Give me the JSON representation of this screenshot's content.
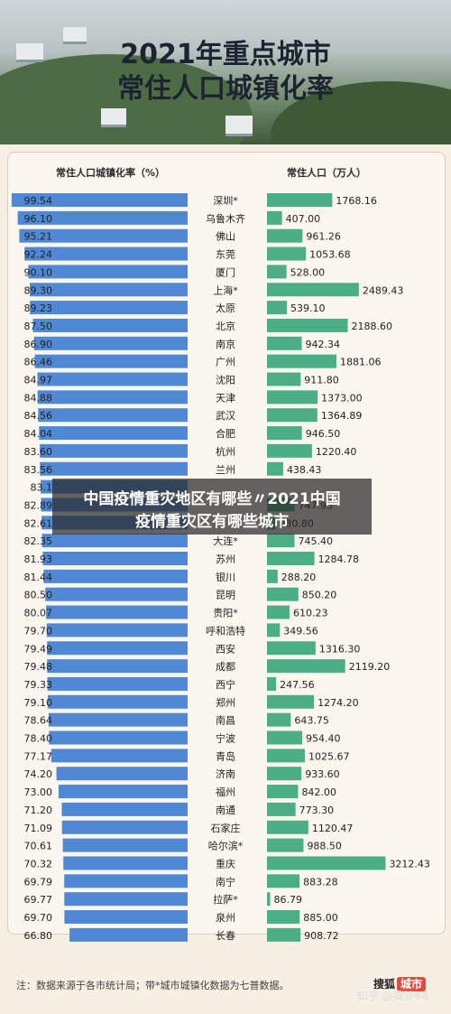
{
  "title_line1": "2021年重点城市",
  "title_line2": "常住人口城镇化率",
  "footer_note": "注：数据来源于各市统计局；带*城市城镇化数据为七普数据。",
  "brand": {
    "name": "搜狐",
    "tag": "城市"
  },
  "credit": "知乎 @霓沙66",
  "overlay": {
    "line1": "中国疫情重灾地区有哪些〃2021中国",
    "line2": "疫情重灾区有哪些城市"
  },
  "colors": {
    "left_bar": "#4f89d6",
    "right_bar": "#4cae86",
    "background": "#f6efe4"
  },
  "chart_data": {
    "type": "bar",
    "left_header": "常住人口城镇化率（%）",
    "right_header": "常住人口（万人）",
    "categories": [
      "深圳*",
      "乌鲁木齐",
      "佛山",
      "东莞",
      "厦门",
      "上海*",
      "太原",
      "北京",
      "南京",
      "广州",
      "沈阳",
      "天津",
      "武汉",
      "合肥",
      "杭州",
      "兰州",
      "",
      "",
      "",
      "大连*",
      "苏州",
      "银川",
      "昆明",
      "贵阳*",
      "呼和浩特",
      "西安",
      "成都",
      "西宁",
      "郑州",
      "南昌",
      "宁波",
      "青岛",
      "济南",
      "福州",
      "南通",
      "石家庄",
      "哈尔滨*",
      "重庆",
      "南宁",
      "拉萨*",
      "泉州",
      "长春"
    ],
    "series": [
      {
        "values": [
          99.54,
          96.1,
          95.21,
          92.24,
          90.1,
          89.3,
          89.23,
          87.5,
          86.9,
          86.46,
          84.97,
          84.88,
          84.56,
          84.04,
          83.6,
          83.56,
          83.1,
          82.89,
          82.61,
          82.35,
          81.93,
          81.44,
          80.5,
          80.07,
          79.7,
          79.49,
          79.48,
          79.33,
          79.1,
          78.64,
          78.4,
          77.17,
          74.2,
          73.0,
          71.2,
          71.09,
          70.61,
          70.32,
          69.79,
          69.77,
          69.7,
          66.8
        ]
      },
      {
        "values": [
          1768.16,
          407.0,
          961.26,
          1053.68,
          528.0,
          2489.43,
          539.1,
          2188.6,
          942.34,
          1881.06,
          911.8,
          1373.0,
          1364.89,
          946.5,
          1220.4,
          438.43,
          null,
          747.95,
          230.8,
          745.4,
          1284.78,
          288.2,
          850.2,
          610.23,
          349.56,
          1316.3,
          2119.2,
          247.56,
          1274.2,
          643.75,
          954.4,
          1025.67,
          933.6,
          842.0,
          773.3,
          1120.47,
          988.5,
          3212.43,
          883.28,
          86.79,
          885.0,
          908.72
        ]
      }
    ],
    "left_labels": [
      "99.54",
      "96.10",
      "95.21",
      "92.24",
      "90.10",
      "89.30",
      "89.23",
      "87.50",
      "86.90",
      "86.46",
      "84.97",
      "84.88",
      "84.56",
      "84.04",
      "83.60",
      "83.56",
      "83.1",
      "82.89",
      "82.61",
      "82.35",
      "81.93",
      "81.44",
      "80.50",
      "80.07",
      "79.70",
      "79.49",
      "79.48",
      "79.33",
      "79.10",
      "78.64",
      "78.40",
      "77.17",
      "74.20",
      "73.00",
      "71.20",
      "71.09",
      "70.61",
      "70.32",
      "69.79",
      "69.77",
      "69.70",
      "66.80"
    ],
    "right_labels": [
      "1768.16",
      "407.00",
      "961.26",
      "1053.68",
      "528.00",
      "2489.43",
      "539.10",
      "2188.60",
      "942.34",
      "1881.06",
      "911.80",
      "1373.00",
      "1364.89",
      "946.50",
      "1220.40",
      "438.43",
      "",
      "747.95",
      "230.80",
      "745.40",
      "1284.78",
      "288.20",
      "850.20",
      "610.23",
      "349.56",
      "1316.30",
      "2119.20",
      "247.56",
      "1274.20",
      "643.75",
      "954.40",
      "1025.67",
      "933.60",
      "842.00",
      "773.30",
      "1120.47",
      "988.50",
      "3212.43",
      "883.28",
      "86.79",
      "885.00",
      "908.72"
    ]
  }
}
